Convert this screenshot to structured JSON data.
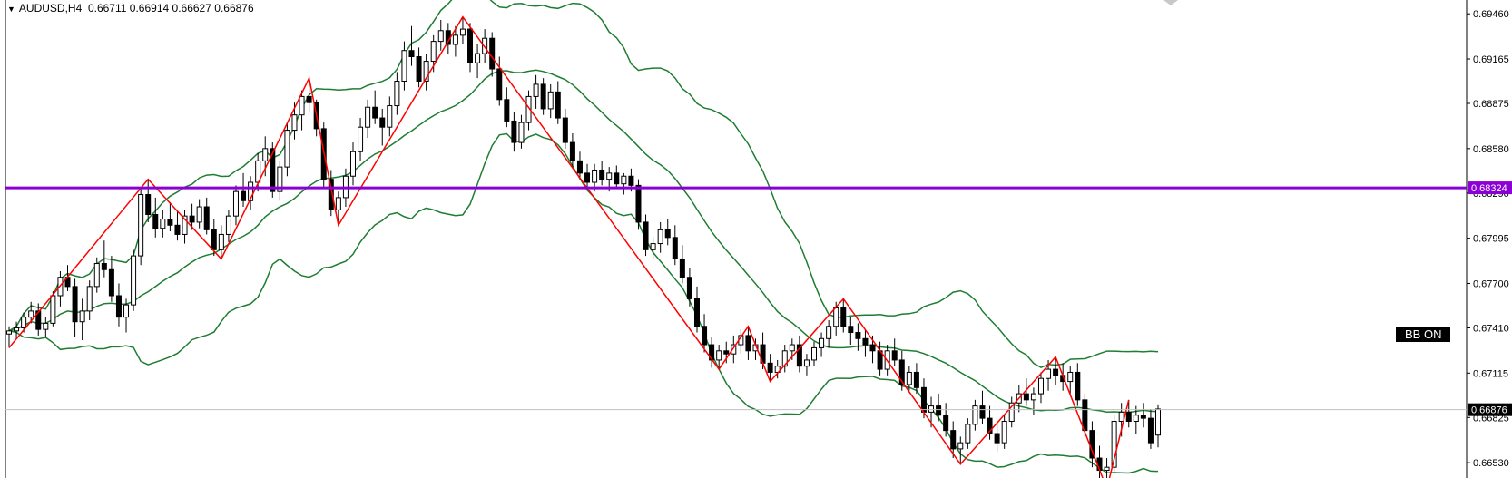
{
  "header": {
    "symbol": "AUDUSD,H4",
    "open": "0.66711",
    "high": "0.66914",
    "low": "0.66627",
    "close": "0.66876"
  },
  "badge_label": "BB ON",
  "colors": {
    "background": "#ffffff",
    "candle_bull": "#ffffff",
    "candle_bear": "#000000",
    "zigzag": "#ff0000",
    "bollinger": "#1e7d32",
    "level_line": "#8b00d4",
    "current_price_line": "#c0c0c0"
  },
  "chart_data": {
    "type": "candlestick",
    "symbol": "AUDUSD",
    "timeframe": "H4",
    "y_ticks": [
      "0.69460",
      "0.69165",
      "0.68875",
      "0.68580",
      "0.68290",
      "0.67995",
      "0.67700",
      "0.67410",
      "0.67115",
      "0.66825",
      "0.66530"
    ],
    "ylim": [
      0.6643,
      0.6955
    ],
    "level_line": {
      "value": "0.68324"
    },
    "current_price": {
      "value": "0.66876"
    },
    "indicators": [
      "Bollinger Bands",
      "ZigZag"
    ],
    "candles": [
      [
        0.6737,
        0.6742,
        0.6728,
        0.6739
      ],
      [
        0.6739,
        0.6745,
        0.6734,
        0.6741
      ],
      [
        0.6741,
        0.6751,
        0.6738,
        0.6748
      ],
      [
        0.6748,
        0.6758,
        0.6744,
        0.6752
      ],
      [
        0.6752,
        0.6757,
        0.6736,
        0.674
      ],
      [
        0.674,
        0.6748,
        0.6735,
        0.6744
      ],
      [
        0.6744,
        0.6765,
        0.6742,
        0.6762
      ],
      [
        0.6762,
        0.6778,
        0.6755,
        0.6774
      ],
      [
        0.6774,
        0.6782,
        0.6765,
        0.6768
      ],
      [
        0.6768,
        0.6773,
        0.6735,
        0.6745
      ],
      [
        0.6745,
        0.676,
        0.6733,
        0.6752
      ],
      [
        0.6752,
        0.6772,
        0.6746,
        0.6768
      ],
      [
        0.6768,
        0.6787,
        0.6764,
        0.6783
      ],
      [
        0.6783,
        0.6798,
        0.6774,
        0.6779
      ],
      [
        0.6779,
        0.6788,
        0.6758,
        0.6762
      ],
      [
        0.6762,
        0.677,
        0.6742,
        0.6748
      ],
      [
        0.6748,
        0.676,
        0.6738,
        0.6756
      ],
      [
        0.6756,
        0.6792,
        0.6752,
        0.6788
      ],
      [
        0.6788,
        0.6832,
        0.6782,
        0.6828
      ],
      [
        0.6828,
        0.6838,
        0.681,
        0.6815
      ],
      [
        0.6815,
        0.6826,
        0.68,
        0.6806
      ],
      [
        0.6806,
        0.6818,
        0.68,
        0.6812
      ],
      [
        0.6812,
        0.6823,
        0.6804,
        0.6808
      ],
      [
        0.6808,
        0.6817,
        0.6798,
        0.6802
      ],
      [
        0.6802,
        0.6818,
        0.6796,
        0.6814
      ],
      [
        0.6814,
        0.6822,
        0.6805,
        0.681
      ],
      [
        0.681,
        0.6825,
        0.6806,
        0.682
      ],
      [
        0.682,
        0.6826,
        0.6802,
        0.6805
      ],
      [
        0.6805,
        0.6812,
        0.6788,
        0.6792
      ],
      [
        0.6792,
        0.6808,
        0.6786,
        0.6802
      ],
      [
        0.6802,
        0.6818,
        0.6797,
        0.6814
      ],
      [
        0.6814,
        0.6834,
        0.6808,
        0.683
      ],
      [
        0.683,
        0.6842,
        0.682,
        0.6824
      ],
      [
        0.6824,
        0.684,
        0.6818,
        0.6836
      ],
      [
        0.6836,
        0.6855,
        0.683,
        0.685
      ],
      [
        0.685,
        0.6866,
        0.684,
        0.6858
      ],
      [
        0.6858,
        0.6862,
        0.6826,
        0.683
      ],
      [
        0.683,
        0.685,
        0.6824,
        0.6846
      ],
      [
        0.6846,
        0.6875,
        0.684,
        0.687
      ],
      [
        0.687,
        0.6888,
        0.6864,
        0.688
      ],
      [
        0.688,
        0.6896,
        0.687,
        0.6892
      ],
      [
        0.6892,
        0.6904,
        0.6882,
        0.6888
      ],
      [
        0.6888,
        0.689,
        0.6866,
        0.6871
      ],
      [
        0.6871,
        0.6875,
        0.6832,
        0.6838
      ],
      [
        0.6838,
        0.6844,
        0.6814,
        0.6818
      ],
      [
        0.6818,
        0.683,
        0.6808,
        0.6826
      ],
      [
        0.6826,
        0.6845,
        0.682,
        0.684
      ],
      [
        0.684,
        0.6862,
        0.6834,
        0.6856
      ],
      [
        0.6856,
        0.6878,
        0.685,
        0.6872
      ],
      [
        0.6872,
        0.689,
        0.6865,
        0.6885
      ],
      [
        0.6885,
        0.6896,
        0.6874,
        0.6878
      ],
      [
        0.6878,
        0.6884,
        0.686,
        0.6872
      ],
      [
        0.6872,
        0.6892,
        0.6866,
        0.6886
      ],
      [
        0.6886,
        0.6908,
        0.688,
        0.6902
      ],
      [
        0.6902,
        0.6928,
        0.6896,
        0.6922
      ],
      [
        0.6922,
        0.6938,
        0.6912,
        0.6918
      ],
      [
        0.6918,
        0.6924,
        0.6898,
        0.6902
      ],
      [
        0.6902,
        0.692,
        0.6896,
        0.6915
      ],
      [
        0.6915,
        0.6932,
        0.6908,
        0.6928
      ],
      [
        0.6928,
        0.6942,
        0.6922,
        0.6935
      ],
      [
        0.6935,
        0.694,
        0.692,
        0.6926
      ],
      [
        0.6926,
        0.6938,
        0.6918,
        0.6932
      ],
      [
        0.6932,
        0.6944,
        0.6926,
        0.6936
      ],
      [
        0.6936,
        0.694,
        0.6908,
        0.6914
      ],
      [
        0.6914,
        0.6926,
        0.6904,
        0.692
      ],
      [
        0.692,
        0.6936,
        0.6914,
        0.693
      ],
      [
        0.693,
        0.6934,
        0.6905,
        0.691
      ],
      [
        0.691,
        0.6918,
        0.6886,
        0.689
      ],
      [
        0.689,
        0.6898,
        0.6872,
        0.6876
      ],
      [
        0.6876,
        0.6882,
        0.6856,
        0.6862
      ],
      [
        0.6862,
        0.688,
        0.6858,
        0.6875
      ],
      [
        0.6875,
        0.6896,
        0.687,
        0.6892
      ],
      [
        0.6892,
        0.6906,
        0.6884,
        0.69
      ],
      [
        0.69,
        0.6904,
        0.688,
        0.6884
      ],
      [
        0.6884,
        0.69,
        0.6878,
        0.6895
      ],
      [
        0.6895,
        0.6902,
        0.6874,
        0.6878
      ],
      [
        0.6878,
        0.6884,
        0.6858,
        0.6862
      ],
      [
        0.6862,
        0.6868,
        0.6846,
        0.685
      ],
      [
        0.685,
        0.6856,
        0.6838,
        0.6842
      ],
      [
        0.6842,
        0.6848,
        0.6832,
        0.6836
      ],
      [
        0.6836,
        0.6848,
        0.683,
        0.6844
      ],
      [
        0.6844,
        0.685,
        0.6834,
        0.6838
      ],
      [
        0.6838,
        0.6846,
        0.683,
        0.6842
      ],
      [
        0.6842,
        0.6847,
        0.6832,
        0.6835
      ],
      [
        0.6835,
        0.6842,
        0.6828,
        0.684
      ],
      [
        0.684,
        0.6845,
        0.683,
        0.6834
      ],
      [
        0.6834,
        0.6838,
        0.6805,
        0.681
      ],
      [
        0.681,
        0.6815,
        0.6788,
        0.6792
      ],
      [
        0.6792,
        0.68,
        0.6786,
        0.6796
      ],
      [
        0.6796,
        0.681,
        0.679,
        0.6805
      ],
      [
        0.6805,
        0.6812,
        0.6795,
        0.68
      ],
      [
        0.68,
        0.6808,
        0.6782,
        0.6786
      ],
      [
        0.6786,
        0.6795,
        0.677,
        0.6774
      ],
      [
        0.6774,
        0.678,
        0.6755,
        0.676
      ],
      [
        0.676,
        0.6768,
        0.6738,
        0.6742
      ],
      [
        0.6742,
        0.675,
        0.6725,
        0.673
      ],
      [
        0.673,
        0.6735,
        0.6715,
        0.672
      ],
      [
        0.672,
        0.673,
        0.6714,
        0.6726
      ],
      [
        0.6726,
        0.6732,
        0.6718,
        0.6724
      ],
      [
        0.6724,
        0.6736,
        0.6718,
        0.673
      ],
      [
        0.673,
        0.674,
        0.6724,
        0.6736
      ],
      [
        0.6736,
        0.6742,
        0.672,
        0.6726
      ],
      [
        0.6726,
        0.6734,
        0.672,
        0.673
      ],
      [
        0.673,
        0.6738,
        0.6714,
        0.6718
      ],
      [
        0.6718,
        0.6724,
        0.6706,
        0.6712
      ],
      [
        0.6712,
        0.672,
        0.6708,
        0.6716
      ],
      [
        0.6716,
        0.673,
        0.6712,
        0.6726
      ],
      [
        0.6726,
        0.6734,
        0.672,
        0.673
      ],
      [
        0.673,
        0.6736,
        0.6712,
        0.6716
      ],
      [
        0.6716,
        0.6724,
        0.671,
        0.672
      ],
      [
        0.672,
        0.6732,
        0.6716,
        0.6728
      ],
      [
        0.6728,
        0.6738,
        0.6722,
        0.6734
      ],
      [
        0.6734,
        0.6746,
        0.6728,
        0.6742
      ],
      [
        0.6742,
        0.6758,
        0.6736,
        0.6754
      ],
      [
        0.6754,
        0.676,
        0.6738,
        0.6742
      ],
      [
        0.6742,
        0.6748,
        0.673,
        0.6738
      ],
      [
        0.6738,
        0.6744,
        0.6726,
        0.6734
      ],
      [
        0.6734,
        0.674,
        0.6722,
        0.673
      ],
      [
        0.673,
        0.6736,
        0.6718,
        0.6726
      ],
      [
        0.6726,
        0.6732,
        0.671,
        0.6714
      ],
      [
        0.6714,
        0.673,
        0.671,
        0.6726
      ],
      [
        0.6726,
        0.6734,
        0.6716,
        0.672
      ],
      [
        0.672,
        0.6726,
        0.67,
        0.6704
      ],
      [
        0.6704,
        0.6716,
        0.67,
        0.6712
      ],
      [
        0.6712,
        0.6718,
        0.6698,
        0.6702
      ],
      [
        0.6702,
        0.6708,
        0.6682,
        0.6686
      ],
      [
        0.6686,
        0.6696,
        0.6676,
        0.669
      ],
      [
        0.669,
        0.6698,
        0.668,
        0.6684
      ],
      [
        0.6684,
        0.6692,
        0.667,
        0.6674
      ],
      [
        0.6674,
        0.668,
        0.6656,
        0.6662
      ],
      [
        0.6662,
        0.667,
        0.6652,
        0.6666
      ],
      [
        0.6666,
        0.6682,
        0.6662,
        0.6678
      ],
      [
        0.6678,
        0.6694,
        0.6674,
        0.669
      ],
      [
        0.669,
        0.67,
        0.6678,
        0.6682
      ],
      [
        0.6682,
        0.669,
        0.6668,
        0.6672
      ],
      [
        0.6672,
        0.668,
        0.666,
        0.6666
      ],
      [
        0.6666,
        0.6684,
        0.6662,
        0.668
      ],
      [
        0.668,
        0.6696,
        0.6676,
        0.6692
      ],
      [
        0.6692,
        0.6704,
        0.6686,
        0.6698
      ],
      [
        0.6698,
        0.6708,
        0.669,
        0.6694
      ],
      [
        0.6694,
        0.6702,
        0.6684,
        0.6698
      ],
      [
        0.6698,
        0.6712,
        0.6692,
        0.6708
      ],
      [
        0.6708,
        0.672,
        0.67,
        0.6714
      ],
      [
        0.6714,
        0.6722,
        0.6704,
        0.671
      ],
      [
        0.671,
        0.6718,
        0.67,
        0.6706
      ],
      [
        0.6706,
        0.6716,
        0.6698,
        0.6712
      ],
      [
        0.6712,
        0.6718,
        0.669,
        0.6694
      ],
      [
        0.6694,
        0.6698,
        0.667,
        0.6674
      ],
      [
        0.6674,
        0.668,
        0.665,
        0.6656
      ],
      [
        0.6656,
        0.6664,
        0.664,
        0.6648
      ],
      [
        0.6648,
        0.6656,
        0.6636,
        0.665
      ],
      [
        0.665,
        0.6684,
        0.6646,
        0.668
      ],
      [
        0.668,
        0.6692,
        0.667,
        0.6686
      ],
      [
        0.6686,
        0.6694,
        0.6676,
        0.668
      ],
      [
        0.668,
        0.669,
        0.6672,
        0.6684
      ],
      [
        0.6684,
        0.6692,
        0.6676,
        0.6682
      ],
      [
        0.6682,
        0.6688,
        0.6662,
        0.6666
      ],
      [
        0.6671,
        0.6691,
        0.6663,
        0.6688
      ]
    ]
  }
}
